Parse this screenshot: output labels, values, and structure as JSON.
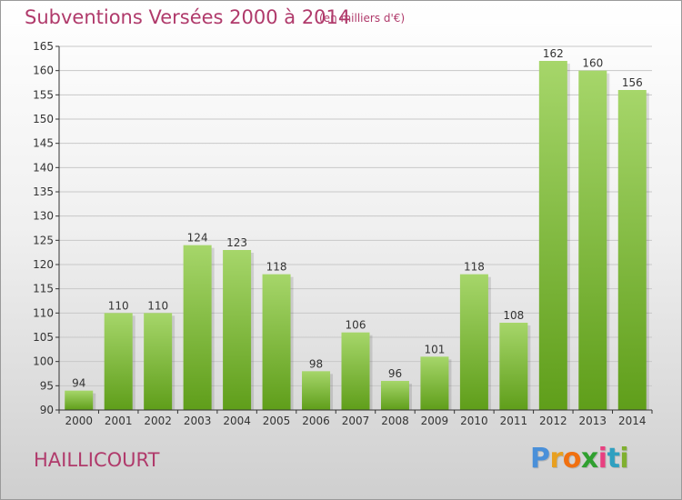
{
  "title": "Subventions Versées 2000 à 2014",
  "subtitle": "(en milliers d'€)",
  "commune": "HAILLICOURT",
  "logo": {
    "text": "Proxiti",
    "letter_colors": [
      "#4a90d9",
      "#e8a020",
      "#f07010",
      "#30a030",
      "#e84080",
      "#30a0c0",
      "#80b030"
    ]
  },
  "colors": {
    "title": "#b03a6b",
    "bar_light": "#a6d66a",
    "bar_dark": "#5f9e1a",
    "grid": "#c8c8c8",
    "axis": "#333333"
  },
  "chart_data": {
    "type": "bar",
    "categories": [
      "2000",
      "2001",
      "2002",
      "2003",
      "2004",
      "2005",
      "2006",
      "2007",
      "2008",
      "2009",
      "2010",
      "2011",
      "2012",
      "2013",
      "2014"
    ],
    "values": [
      94,
      110,
      110,
      124,
      123,
      118,
      98,
      106,
      96,
      101,
      118,
      108,
      162,
      160,
      156
    ],
    "ylim": [
      90,
      165
    ],
    "yticks": [
      90,
      95,
      100,
      105,
      110,
      115,
      120,
      125,
      130,
      135,
      140,
      145,
      150,
      155,
      160,
      165
    ],
    "grid": true,
    "title": "Subventions Versées 2000 à 2014",
    "xlabel": "",
    "ylabel": ""
  }
}
